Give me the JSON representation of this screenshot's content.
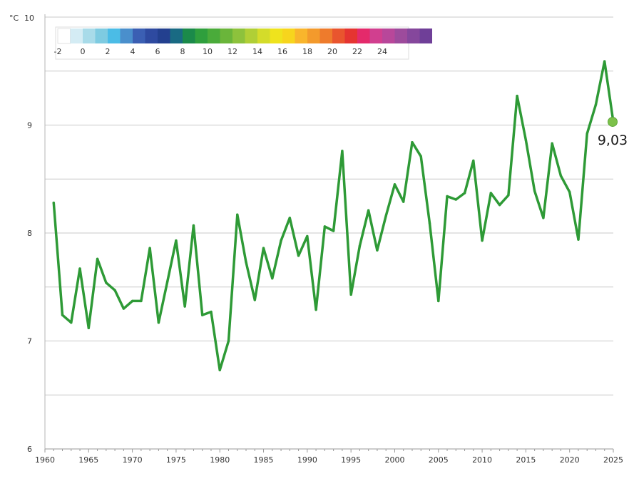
{
  "chart_data": {
    "type": "line",
    "title": "",
    "xlabel": "",
    "ylabel": "",
    "y_unit": "°C",
    "xlim": [
      1960,
      2025
    ],
    "ylim": [
      6,
      10
    ],
    "x_ticks": [
      1960,
      1965,
      1970,
      1975,
      1980,
      1985,
      1990,
      1995,
      2000,
      2005,
      2010,
      2015,
      2020,
      2025
    ],
    "x_tick_labels": [
      "1960",
      "1965",
      "1970",
      "1975",
      "1980",
      "1985",
      "1990",
      "1995",
      "2000",
      "2005",
      "2010",
      "2015",
      "2020",
      "2025"
    ],
    "y_ticks": [
      6,
      7,
      8,
      9,
      10
    ],
    "y_tick_labels": [
      "6",
      "7",
      "8",
      "9",
      "10"
    ],
    "grid": true,
    "series": [
      {
        "color": "#2e9a36",
        "x": [
          1961,
          1962,
          1963,
          1964,
          1965,
          1966,
          1967,
          1968,
          1969,
          1970,
          1971,
          1972,
          1973,
          1974,
          1975,
          1976,
          1977,
          1978,
          1979,
          1980,
          1981,
          1982,
          1983,
          1984,
          1985,
          1986,
          1987,
          1988,
          1989,
          1990,
          1991,
          1992,
          1993,
          1994,
          1995,
          1996,
          1997,
          1998,
          1999,
          2000,
          2001,
          2002,
          2003,
          2004,
          2005,
          2006,
          2007,
          2008,
          2009,
          2010,
          2011,
          2012,
          2013,
          2014,
          2015,
          2016,
          2017,
          2018,
          2019,
          2020,
          2021,
          2022,
          2023,
          2024,
          2025
        ],
        "values": [
          8.28,
          7.24,
          7.17,
          7.67,
          7.12,
          7.76,
          7.54,
          7.47,
          7.3,
          7.37,
          7.37,
          7.86,
          7.17,
          7.55,
          7.93,
          7.32,
          8.07,
          7.24,
          7.27,
          6.73,
          7.0,
          8.17,
          7.73,
          7.38,
          7.86,
          7.58,
          7.93,
          8.14,
          7.79,
          7.97,
          7.29,
          8.06,
          8.02,
          8.76,
          7.43,
          7.88,
          8.21,
          7.84,
          8.16,
          8.45,
          8.29,
          8.84,
          8.71,
          8.09,
          7.37,
          8.34,
          8.31,
          8.37,
          8.67,
          7.93,
          8.37,
          8.26,
          8.35,
          9.27,
          8.86,
          8.39,
          8.14,
          8.83,
          8.53,
          8.38,
          7.94,
          8.92,
          9.19,
          9.59,
          9.03
        ]
      }
    ],
    "highlight_point": {
      "x": 2025,
      "y": 9.03,
      "label": "9,03",
      "color": "#7cc14a"
    },
    "legend": {
      "type": "color-scale",
      "placement": "top-left",
      "swatches": [
        "#ffffff",
        "#d4ecf4",
        "#a8dbe9",
        "#7ecbe1",
        "#4bbce6",
        "#4a8fcc",
        "#3b5fb3",
        "#2e4aa0",
        "#23408f",
        "#196a83",
        "#1b8a4a",
        "#2f9f3d",
        "#4aab3a",
        "#6ab53a",
        "#8dc23c",
        "#b0cf36",
        "#d4dc2a",
        "#efe31d",
        "#f7d51d",
        "#f9b52c",
        "#f39a2c",
        "#ee7b2c",
        "#e9552e",
        "#e53431",
        "#e42a6b",
        "#d13f8f",
        "#b8479a",
        "#9d4b9c",
        "#85479c",
        "#6f3f98"
      ],
      "labels": [
        "-2",
        "0",
        "2",
        "4",
        "6",
        "8",
        "10",
        "12",
        "14",
        "16",
        "18",
        "20",
        "22",
        "24"
      ]
    }
  }
}
